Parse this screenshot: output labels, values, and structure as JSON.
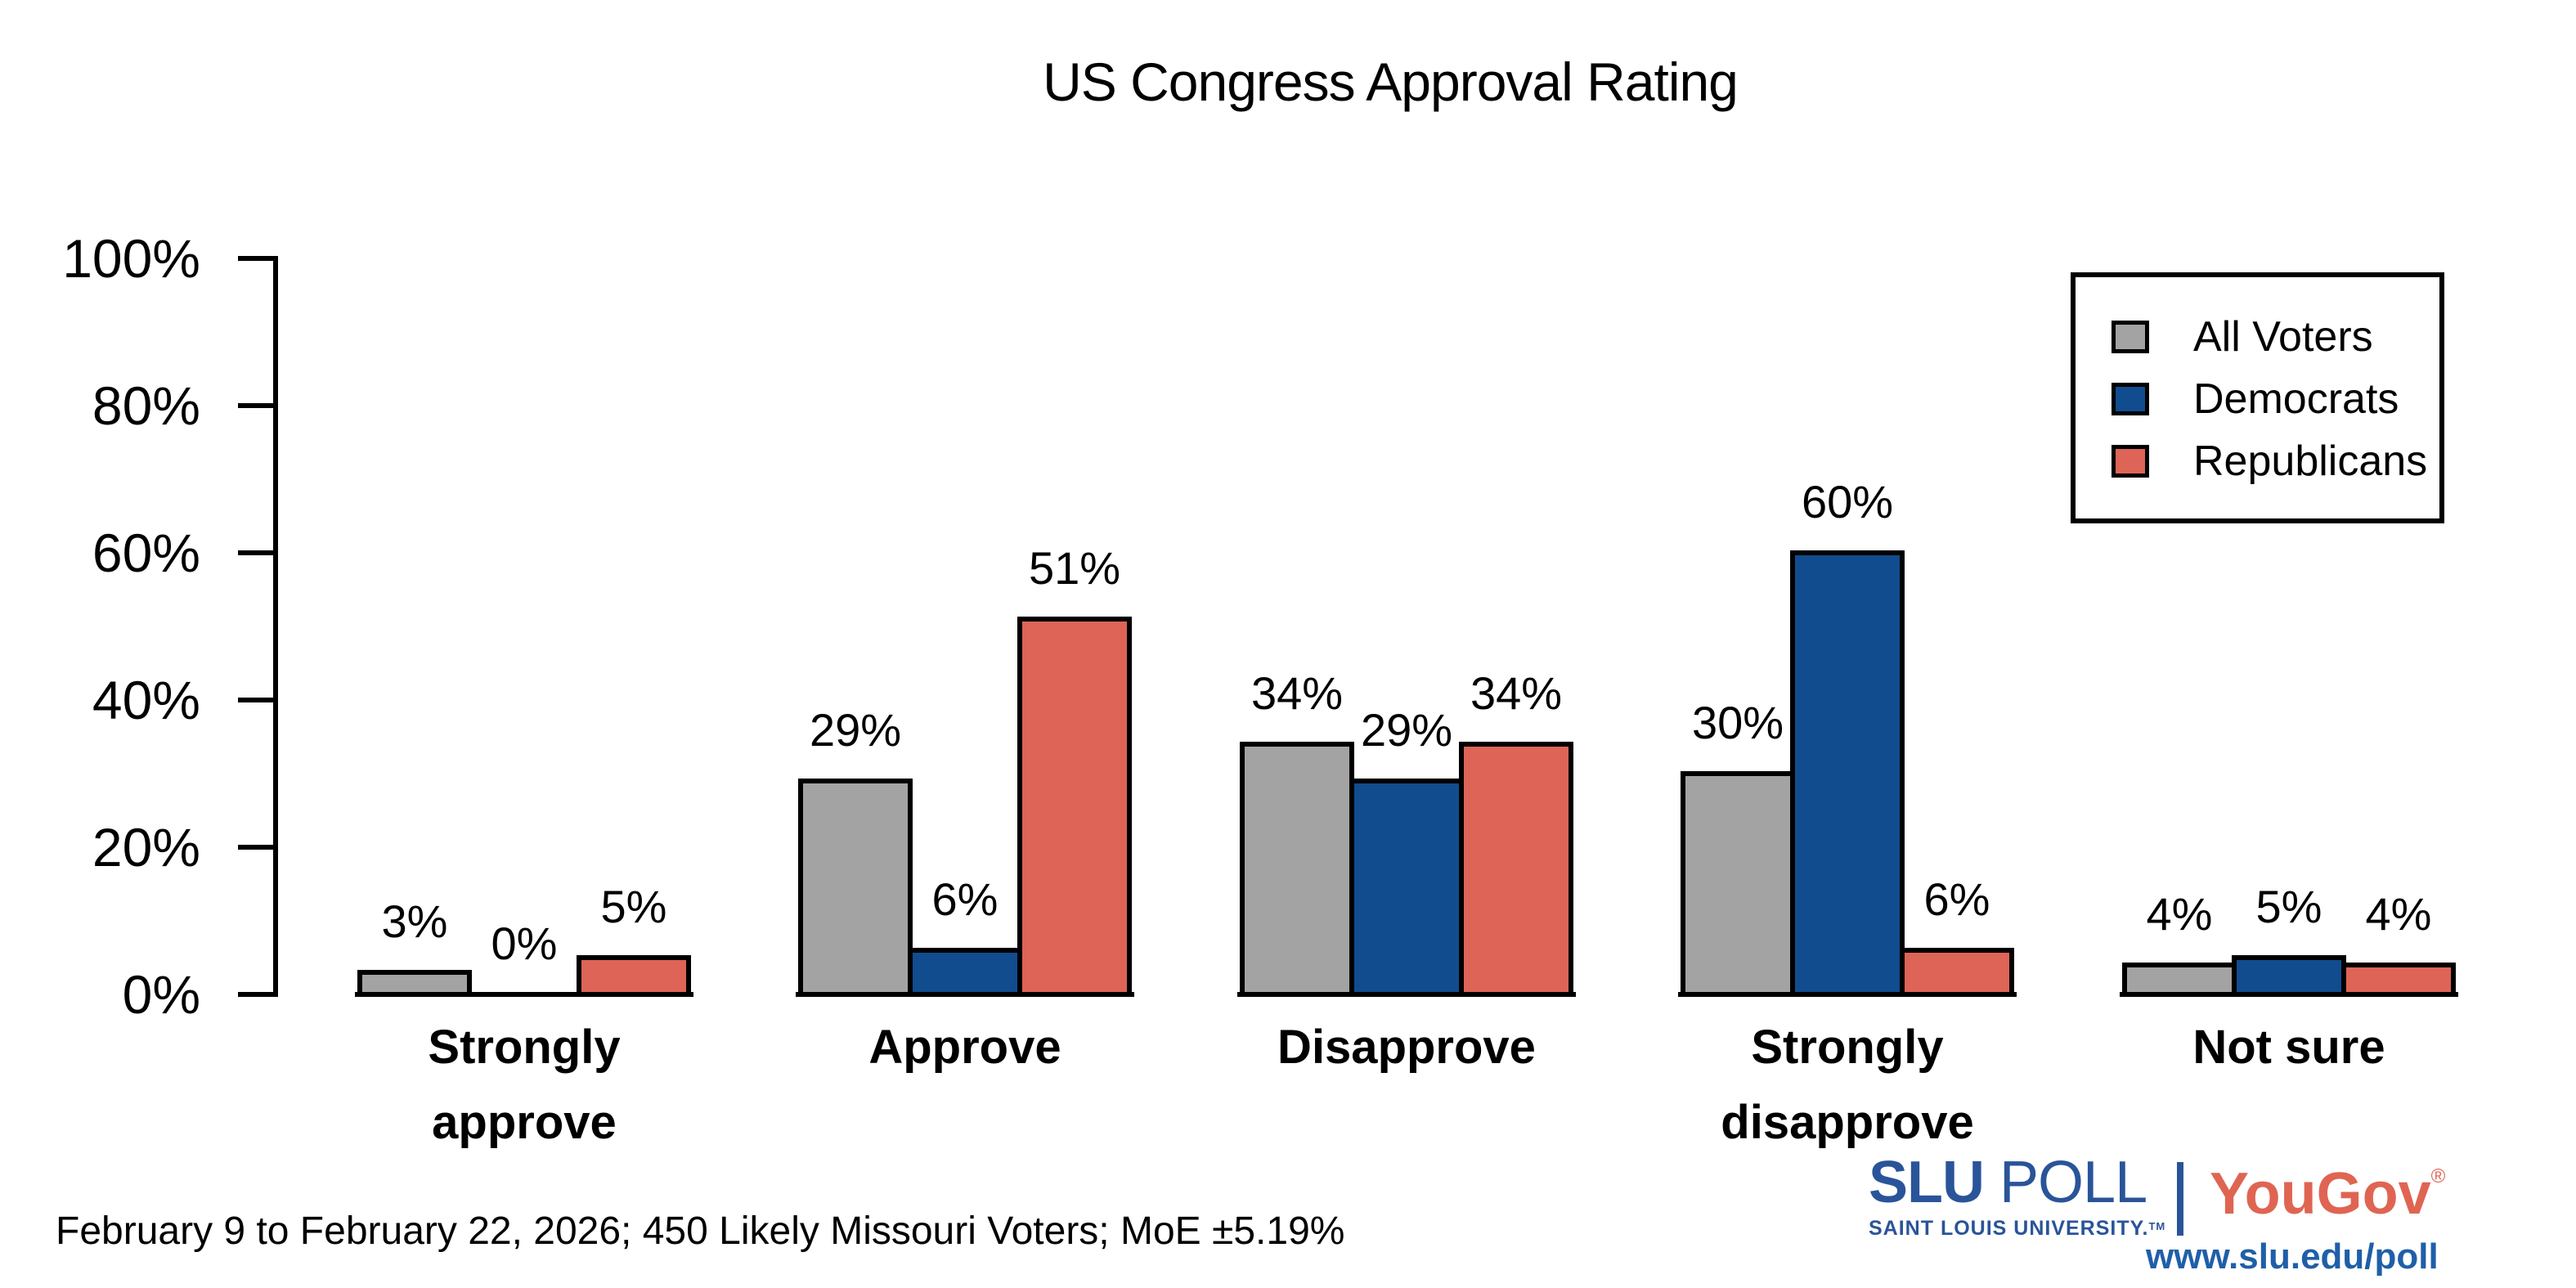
{
  "title": "US Congress Approval Rating",
  "footer": {
    "text": "February 9 to February 22, 2026; 450 Likely Missouri Voters; MoE ±5.19%"
  },
  "branding": {
    "slu_poll_bold": "SLU",
    "slu_poll_light": " POLL",
    "slu_sub": "SAINT LOUIS UNIVERSITY.",
    "slu_tm": "TM",
    "yougov": "YouGov",
    "yougov_reg": "®",
    "url": "www.slu.edu/poll",
    "slu_blue": "#2a5499",
    "url_blue": "#1f5fa8",
    "yougov_red": "#df6552"
  },
  "chart_data": {
    "type": "bar",
    "title": "US Congress Approval Rating",
    "categories": [
      "Strongly approve",
      "Approve",
      "Disapprove",
      "Strongly disapprove",
      "Not sure"
    ],
    "categories_lines": [
      [
        "Strongly",
        "approve"
      ],
      [
        "Approve"
      ],
      [
        "Disapprove"
      ],
      [
        "Strongly",
        "disapprove"
      ],
      [
        "Not sure"
      ]
    ],
    "series": [
      {
        "name": "All Voters",
        "color": "#a3a3a3",
        "values": [
          3,
          29,
          34,
          30,
          4
        ]
      },
      {
        "name": "Democrats",
        "color": "#114c8e",
        "values": [
          0,
          6,
          29,
          60,
          5
        ]
      },
      {
        "name": "Republicans",
        "color": "#dd6456",
        "values": [
          5,
          51,
          34,
          6,
          4
        ]
      }
    ],
    "xlabel": "",
    "ylabel": "",
    "ylim": [
      0,
      100
    ],
    "yticks": [
      0,
      20,
      40,
      60,
      80,
      100
    ],
    "ytick_suffix": "%",
    "value_suffix": "%",
    "grid": false,
    "legend_position": "upper right",
    "bar_outline_color": "#000000",
    "axis_color": "#000000"
  }
}
